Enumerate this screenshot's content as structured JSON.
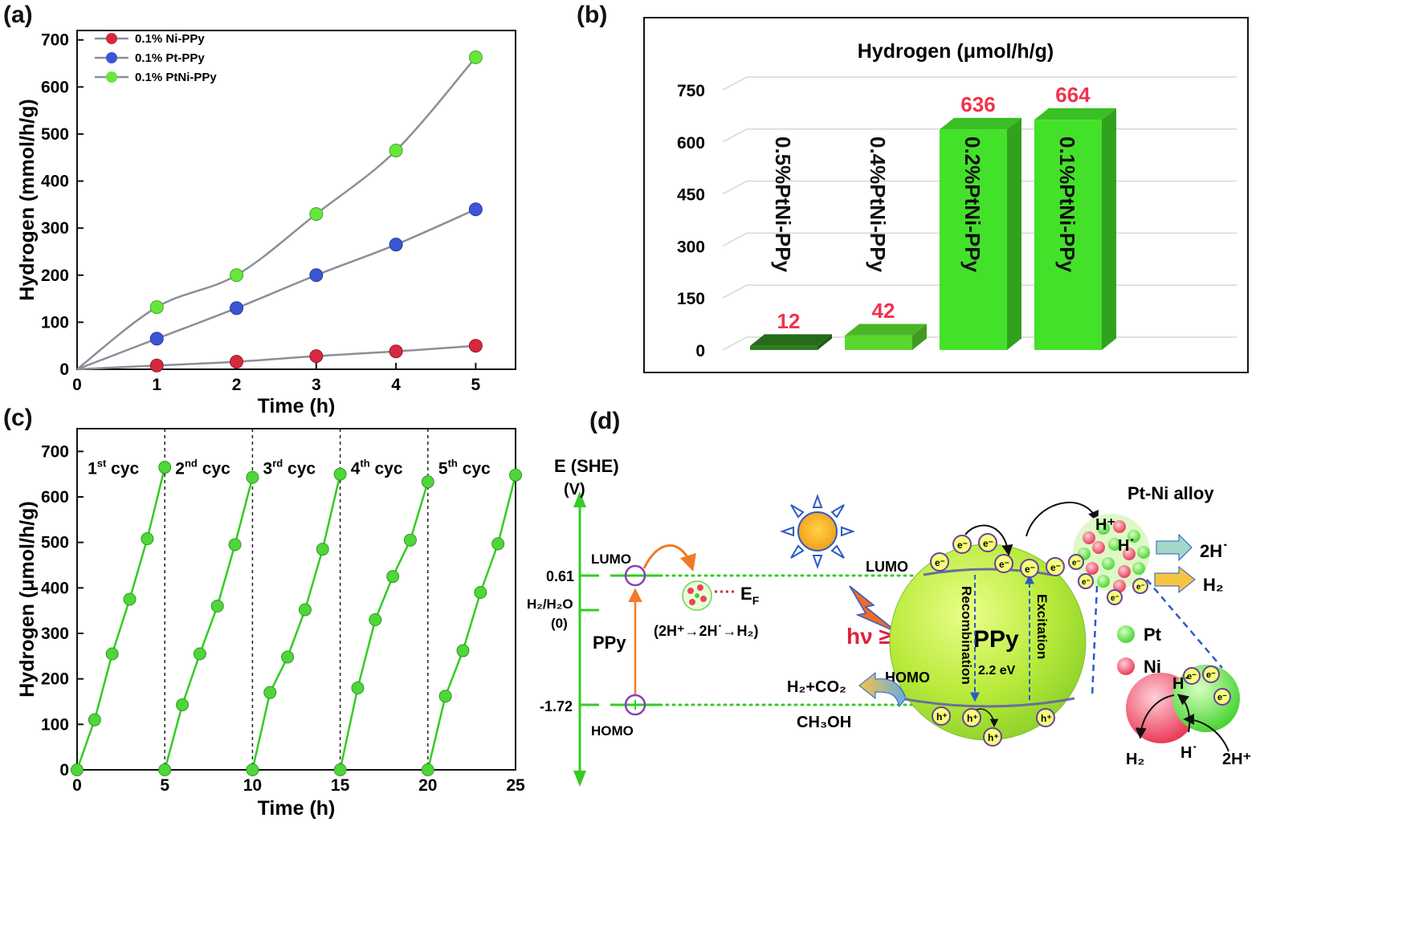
{
  "panels": {
    "a": "(a)",
    "b": "(b)",
    "c": "(c)",
    "d": "(d)"
  },
  "chart_data": [
    {
      "type": "line",
      "panel": "(a)",
      "xlabel": "Time (h)",
      "ylabel": "Hydrogen (mmol/h/g)",
      "xlim": [
        0,
        5.5
      ],
      "ylim": [
        0,
        720
      ],
      "xticks": [
        "0",
        "1",
        "2",
        "3",
        "4",
        "5"
      ],
      "yticks": [
        "0",
        "100",
        "200",
        "300",
        "400",
        "500",
        "600",
        "700"
      ],
      "legend_position": "top-left",
      "x": [
        0,
        1,
        2,
        3,
        4,
        5
      ],
      "series": [
        {
          "name": "0.1% Ni-PPy",
          "color": "#d8283f",
          "values": [
            0,
            8,
            16,
            28,
            38,
            50
          ]
        },
        {
          "name": "0.1% Pt-PPy",
          "color": "#3b55d6",
          "values": [
            0,
            65,
            130,
            200,
            265,
            340
          ]
        },
        {
          "name": "0.1% PtNi-PPy",
          "color": "#66e83a",
          "values": [
            0,
            132,
            200,
            330,
            465,
            663
          ]
        }
      ]
    },
    {
      "type": "bar",
      "panel": "(b)",
      "title": "Hydrogen (μmol/h/g)",
      "yticks": [
        "0",
        "150",
        "300",
        "450",
        "600",
        "750"
      ],
      "ylim": [
        0,
        750
      ],
      "grid": true,
      "categories": [
        "0.5%PtNi-PPy",
        "0.4%PtNi-PPy",
        "0.2%PtNi-PPy",
        "0.1%PtNi-PPy"
      ],
      "values": [
        12,
        42,
        636,
        664
      ],
      "value_labels": [
        "12",
        "42",
        "636",
        "664"
      ],
      "colors": [
        "#2e7d1f",
        "#5ad62e",
        "#44e12a",
        "#44e12a"
      ]
    },
    {
      "type": "line",
      "panel": "(c)",
      "xlabel": "Time (h)",
      "ylabel": "Hydrogen (μmol/h/g)",
      "xlim": [
        0,
        25
      ],
      "ylim": [
        0,
        750
      ],
      "xticks": [
        "0",
        "5",
        "10",
        "15",
        "20",
        "25"
      ],
      "yticks": [
        "0",
        "100",
        "200",
        "300",
        "400",
        "500",
        "600",
        "700"
      ],
      "cycle_labels": [
        {
          "base": "1",
          "sup": "st",
          "rest": " cyc"
        },
        {
          "base": "2",
          "sup": "nd",
          "rest": " cyc"
        },
        {
          "base": "3",
          "sup": "rd",
          "rest": " cyc"
        },
        {
          "base": "4",
          "sup": "th",
          "rest": " cyc"
        },
        {
          "base": "5",
          "sup": "th",
          "rest": " cyc"
        }
      ],
      "color": "#33cc22",
      "cycles": [
        {
          "x": [
            0,
            1,
            2,
            3,
            4,
            5
          ],
          "values": [
            0,
            110,
            255,
            375,
            508,
            665
          ]
        },
        {
          "x": [
            5,
            6,
            7,
            8,
            9,
            10
          ],
          "values": [
            0,
            143,
            255,
            360,
            495,
            643
          ]
        },
        {
          "x": [
            10,
            11,
            12,
            13,
            14,
            15
          ],
          "values": [
            0,
            170,
            248,
            352,
            485,
            650
          ]
        },
        {
          "x": [
            15,
            16,
            17,
            18,
            19,
            20
          ],
          "values": [
            0,
            180,
            330,
            425,
            505,
            633
          ]
        },
        {
          "x": [
            20,
            21,
            22,
            23,
            24,
            25
          ],
          "values": [
            0,
            162,
            262,
            390,
            497,
            648
          ]
        }
      ]
    }
  ],
  "diagram": {
    "e_axis_title": "E (SHE)",
    "e_axis_unit": "(V)",
    "v_lumo": "0.61",
    "v_h2": "H₂/H₂O",
    "v_zero": "(0)",
    "v_homo": "-1.72",
    "lumo_left": "LUMO",
    "homo_left": "HOMO",
    "ppy_left": "PPy",
    "ef": "E",
    "ef_sub": "F",
    "reaction": "(2H⁺→2H˙→H₂)",
    "hv": "hν ≥ Eg",
    "lumo_right": "LUMO",
    "homo_right": "HOMO",
    "h2co2": "H₂+CO₂",
    "ch3oh": "CH₃OH",
    "ppy_center": "PPy",
    "gap": "2.2 eV",
    "recombination": "Recombination",
    "excitation": "Excitation",
    "alloy": "Pt-Ni alloy",
    "hplus": "H⁺",
    "hdot": "H˙",
    "twoHdot": "2H˙",
    "h2_out": "H₂",
    "pt": "Pt",
    "ni": "Ni",
    "bottom_h2": "H₂",
    "bottom_hdot": "H˙",
    "bottom_2hplus": "2H⁺",
    "electron": "e⁻",
    "hole": "h⁺"
  }
}
